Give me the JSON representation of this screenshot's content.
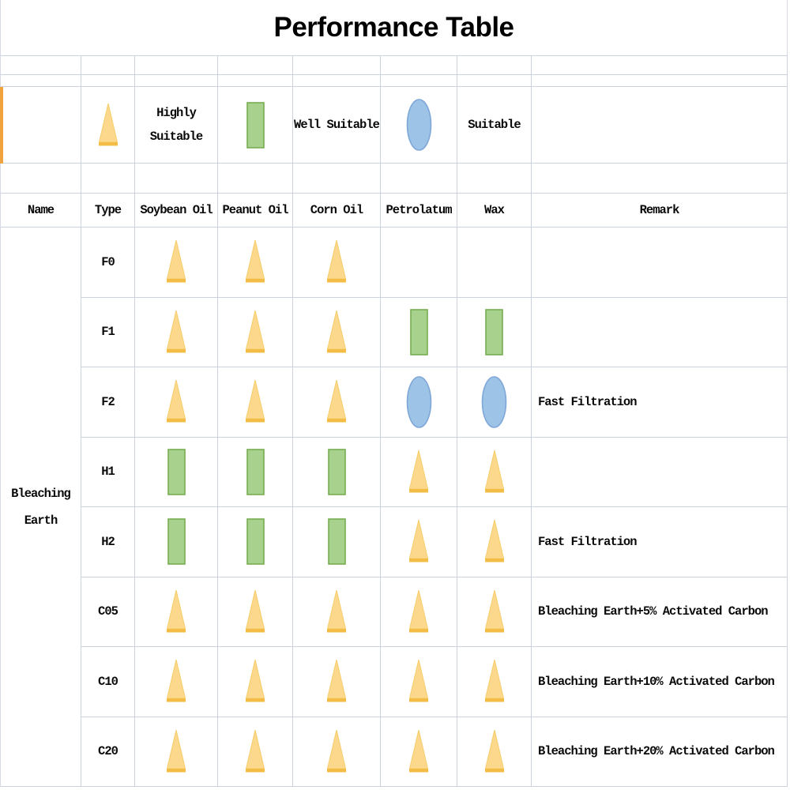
{
  "title": "Performance Table",
  "legend": {
    "items": [
      {
        "symbol": "triangle",
        "label": "Highly Suitable"
      },
      {
        "symbol": "square",
        "label": "Well Suitable"
      },
      {
        "symbol": "circle",
        "label": "Suitable"
      }
    ]
  },
  "table": {
    "headers": [
      "Name",
      "Type",
      "Soybean Oil",
      "Peanut Oil",
      "Corn Oil",
      "Petrolatum",
      "Wax",
      "Remark"
    ],
    "name_cell": "Bleaching Earth",
    "symbol_columns": [
      "soybean",
      "peanut",
      "corn",
      "petrolatum",
      "wax"
    ],
    "symbol_meanings": {
      "triangle": "Highly Suitable",
      "square": "Well Suitable",
      "circle": "Suitable"
    },
    "rows": [
      {
        "type": "F0",
        "soybean": "triangle",
        "peanut": "triangle",
        "corn": "triangle",
        "petrolatum": "",
        "wax": "",
        "remark": ""
      },
      {
        "type": "F1",
        "soybean": "triangle",
        "peanut": "triangle",
        "corn": "triangle",
        "petrolatum": "square",
        "wax": "square",
        "remark": ""
      },
      {
        "type": "F2",
        "soybean": "triangle",
        "peanut": "triangle",
        "corn": "triangle",
        "petrolatum": "circle",
        "wax": "circle",
        "remark": "Fast Filtration"
      },
      {
        "type": "H1",
        "soybean": "square",
        "peanut": "square",
        "corn": "square",
        "petrolatum": "triangle",
        "wax": "triangle",
        "remark": ""
      },
      {
        "type": "H2",
        "soybean": "square",
        "peanut": "square",
        "corn": "square",
        "petrolatum": "triangle",
        "wax": "triangle",
        "remark": "Fast Filtration"
      },
      {
        "type": "C05",
        "soybean": "triangle",
        "peanut": "triangle",
        "corn": "triangle",
        "petrolatum": "triangle",
        "wax": "triangle",
        "remark": "Bleaching Earth+5% Activated Carbon"
      },
      {
        "type": "C10",
        "soybean": "triangle",
        "peanut": "triangle",
        "corn": "triangle",
        "petrolatum": "triangle",
        "wax": "triangle",
        "remark": "Bleaching Earth+10% Activated Carbon"
      },
      {
        "type": "C20",
        "soybean": "triangle",
        "peanut": "triangle",
        "corn": "triangle",
        "petrolatum": "triangle",
        "wax": "triangle",
        "remark": "Bleaching Earth+20% Activated Carbon"
      }
    ]
  },
  "colors": {
    "triangle_fill": "#FBD88C",
    "triangle_side": "#F6CD6B",
    "triangle_base": "#F2BC45",
    "square_fill": "#A9D18E",
    "square_edge": "#76AD51",
    "circle_fill": "#9DC3E6",
    "circle_edge": "#7FA7D8",
    "accent_stripe": "#F0A33F"
  }
}
